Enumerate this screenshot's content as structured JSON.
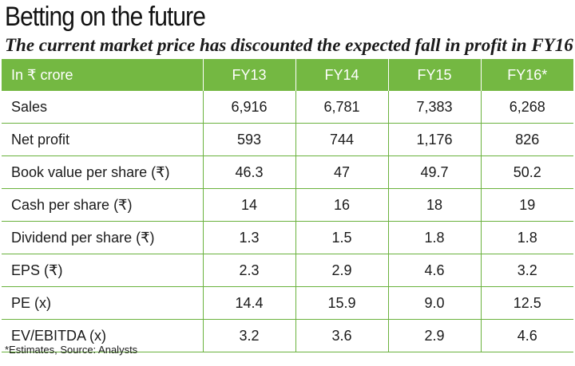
{
  "title": "Betting on the future",
  "subtitle": "The current market price has discounted the expected fall in profit in FY16",
  "table": {
    "headers": [
      "In ₹ crore",
      "FY13",
      "FY14",
      "FY15",
      "FY16*"
    ],
    "rows": [
      [
        "Sales",
        "6,916",
        "6,781",
        "7,383",
        "6,268"
      ],
      [
        "Net profit",
        "593",
        "744",
        "1,176",
        "826"
      ],
      [
        "Book value per share (₹)",
        "46.3",
        "47",
        "49.7",
        "50.2"
      ],
      [
        "Cash per share (₹)",
        "14",
        "16",
        "18",
        "19"
      ],
      [
        "Dividend per share (₹)",
        "1.3",
        "1.5",
        "1.8",
        "1.8"
      ],
      [
        "EPS (₹)",
        "2.3",
        "2.9",
        "4.6",
        "3.2"
      ],
      [
        "PE (x)",
        "14.4",
        "15.9",
        "9.0",
        "12.5"
      ],
      [
        "EV/EBITDA (x)",
        "3.2",
        "3.6",
        "2.9",
        "4.6"
      ]
    ]
  },
  "footnote": "*Estimates, Source: Analysts",
  "colors": {
    "header_bg": "#74b842",
    "rule": "#6ab23d"
  }
}
